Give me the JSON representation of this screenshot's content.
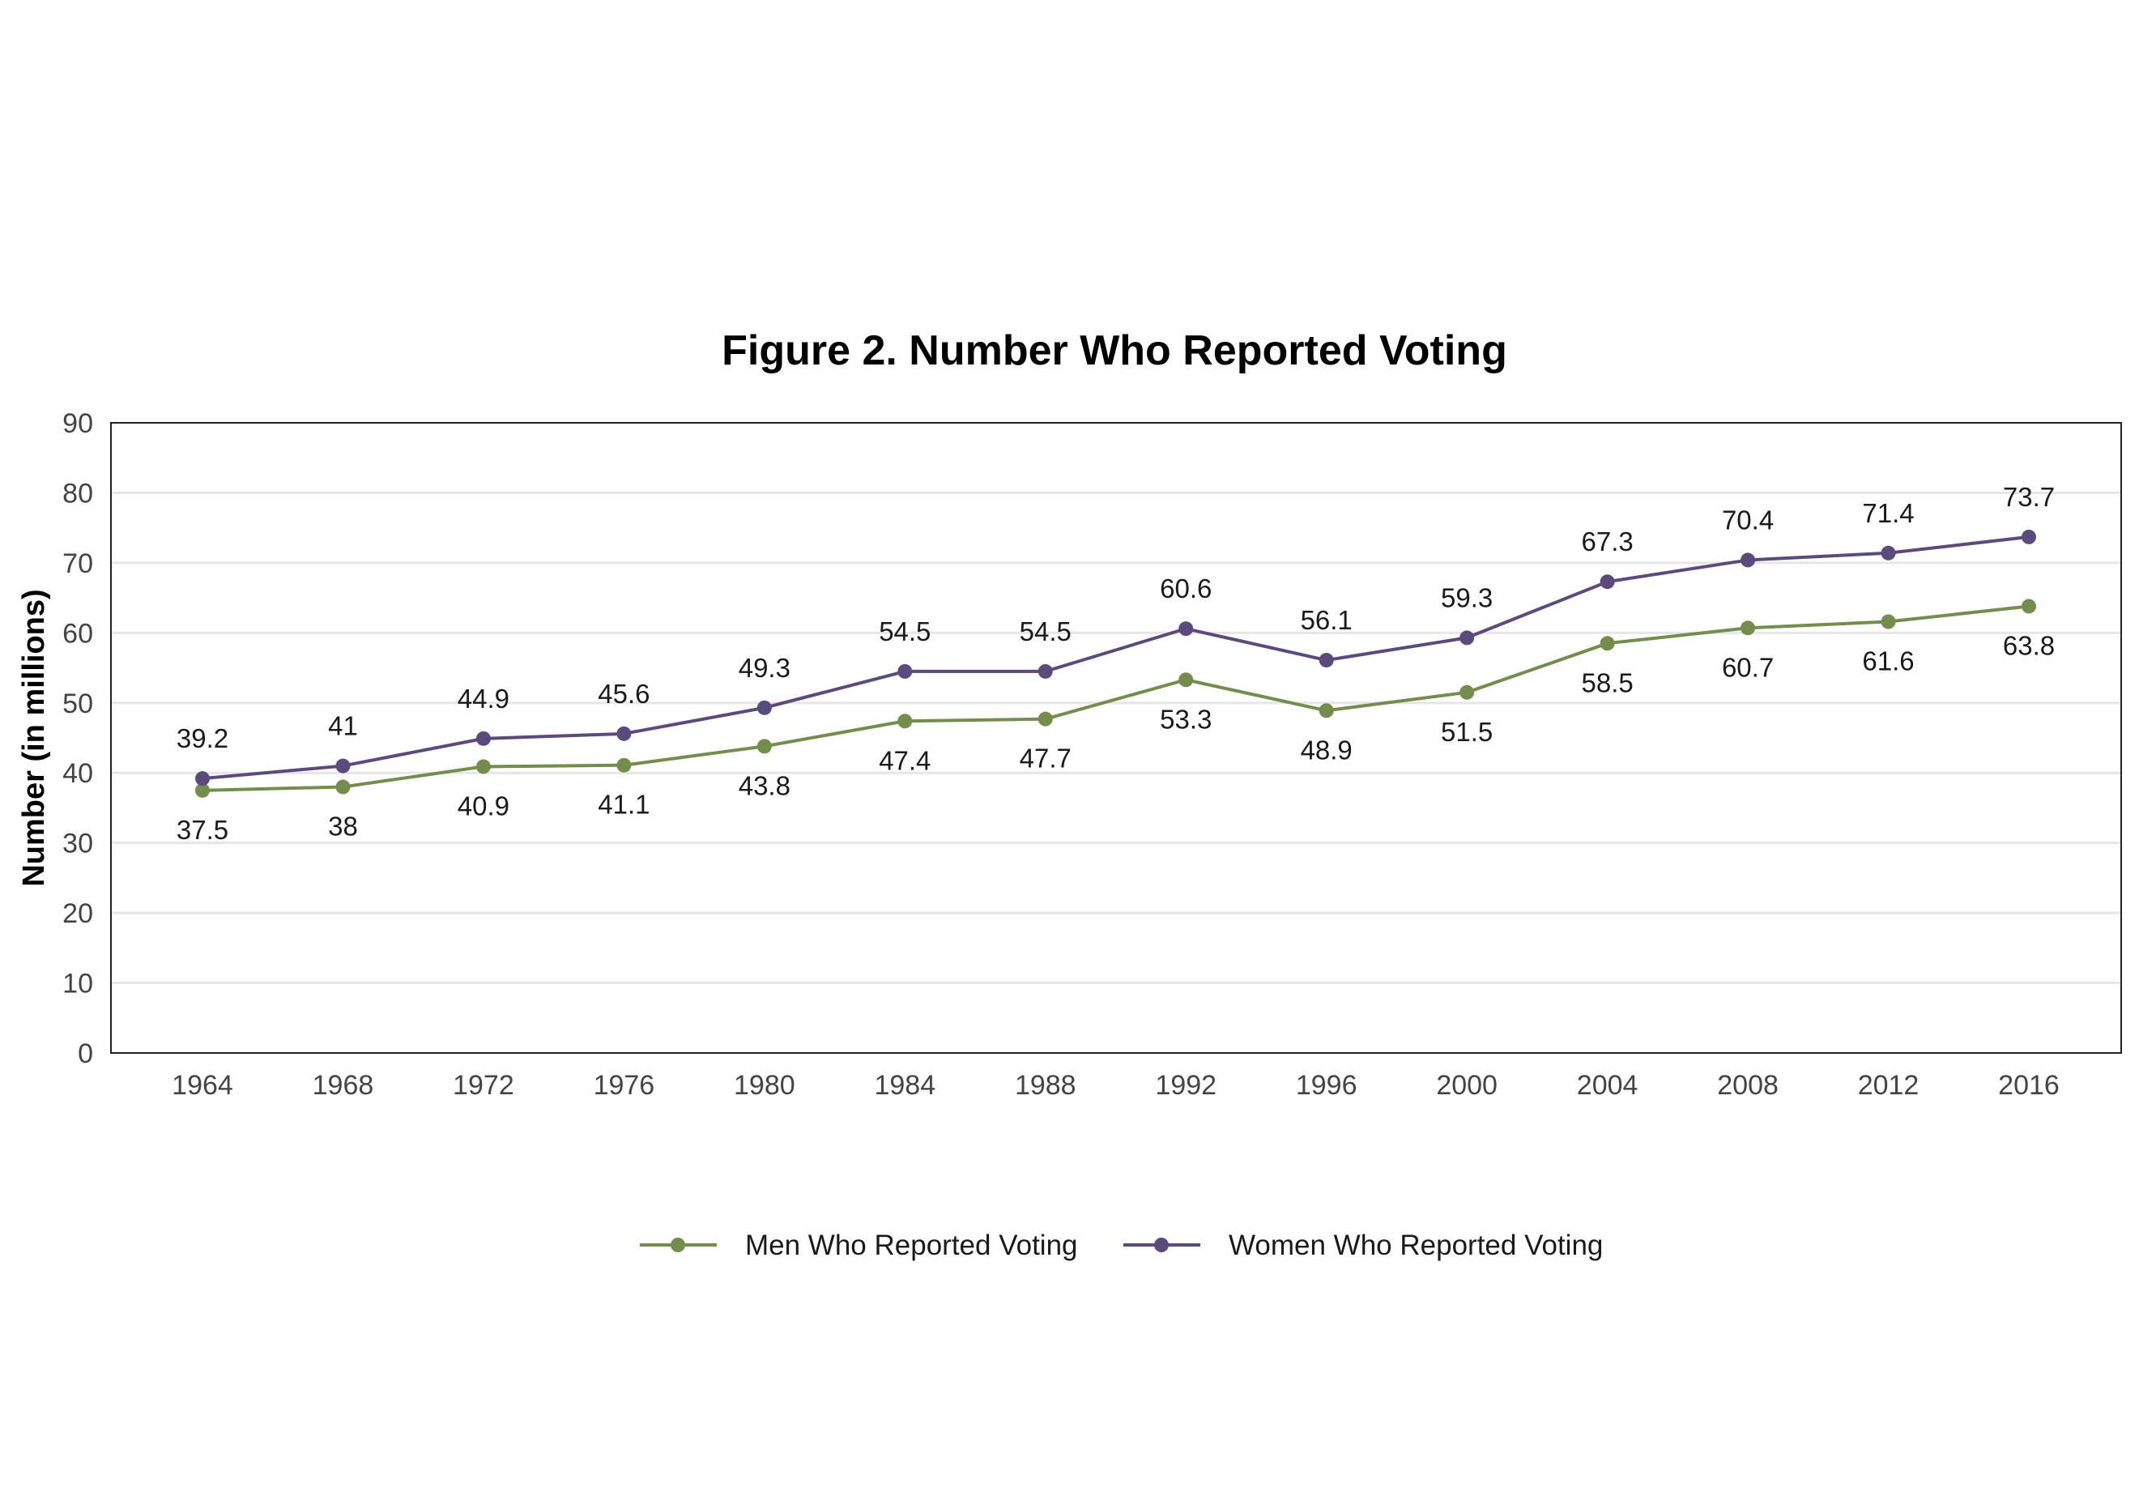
{
  "chart_data": {
    "type": "line",
    "title": "Figure 2. Number Who Reported Voting",
    "xlabel": "",
    "ylabel": "Number (in millions)",
    "ylim": [
      0,
      90
    ],
    "yticks": [
      0,
      10,
      20,
      30,
      40,
      50,
      60,
      70,
      80,
      90
    ],
    "grid": true,
    "legend_position": "bottom",
    "categories": [
      "1964",
      "1968",
      "1972",
      "1976",
      "1980",
      "1984",
      "1988",
      "1992",
      "1996",
      "2000",
      "2004",
      "2008",
      "2012",
      "2016"
    ],
    "series": [
      {
        "name": "Men Who Reported Voting",
        "color": "#758d4c",
        "label_position": "below",
        "values": [
          37.5,
          38,
          40.9,
          41.1,
          43.8,
          47.4,
          47.7,
          53.3,
          48.9,
          51.5,
          58.5,
          60.7,
          61.6,
          63.8
        ]
      },
      {
        "name": "Women Who Reported Voting",
        "color": "#5b4a7c",
        "label_position": "above",
        "values": [
          39.2,
          41,
          44.9,
          45.6,
          49.3,
          54.5,
          54.5,
          60.6,
          56.1,
          59.3,
          67.3,
          70.4,
          71.4,
          73.7
        ]
      }
    ]
  }
}
